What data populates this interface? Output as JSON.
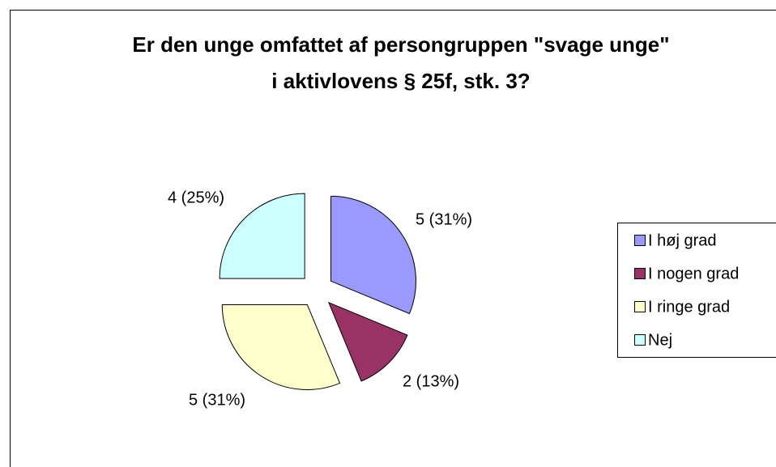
{
  "chart_data": {
    "type": "pie",
    "title": "Er den unge omfattet af persongruppen \"svage unge\" i aktivlovens § 25f, stk. 3?",
    "categories": [
      "I høj grad",
      "I nogen grad",
      "I ringe grad",
      "Nej"
    ],
    "values": [
      5,
      2,
      5,
      4
    ],
    "value_labels": [
      "5 (31%)",
      "2 (13%)",
      "5 (31%)",
      "4 (25%)"
    ],
    "colors": [
      "#9999ff",
      "#993366",
      "#ffffcc",
      "#ccffff"
    ],
    "legend": "right"
  }
}
